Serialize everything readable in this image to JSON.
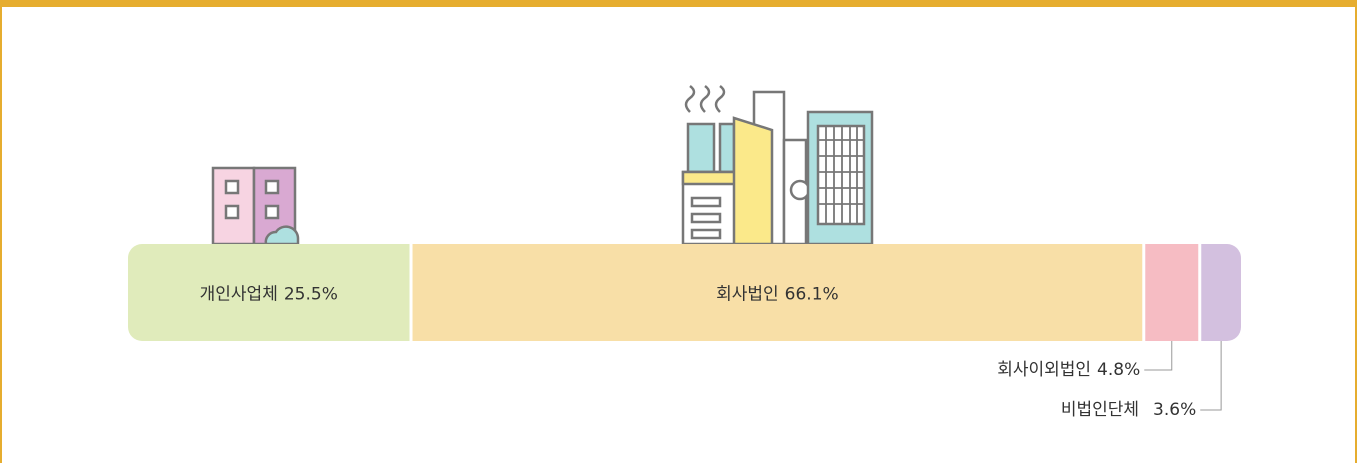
{
  "chart_data": {
    "type": "stacked-bar",
    "categories": [
      "개인사업체",
      "회사법인",
      "회사이외법인",
      "비법인단체"
    ],
    "values": [
      25.5,
      66.1,
      4.8,
      3.6
    ],
    "value_labels": [
      "25.5%",
      "66.1%",
      "4.8%",
      "3.6%"
    ],
    "colors": [
      "#e0ebbb",
      "#f8dfa7",
      "#f6bcc3",
      "#d3c0df"
    ]
  }
}
